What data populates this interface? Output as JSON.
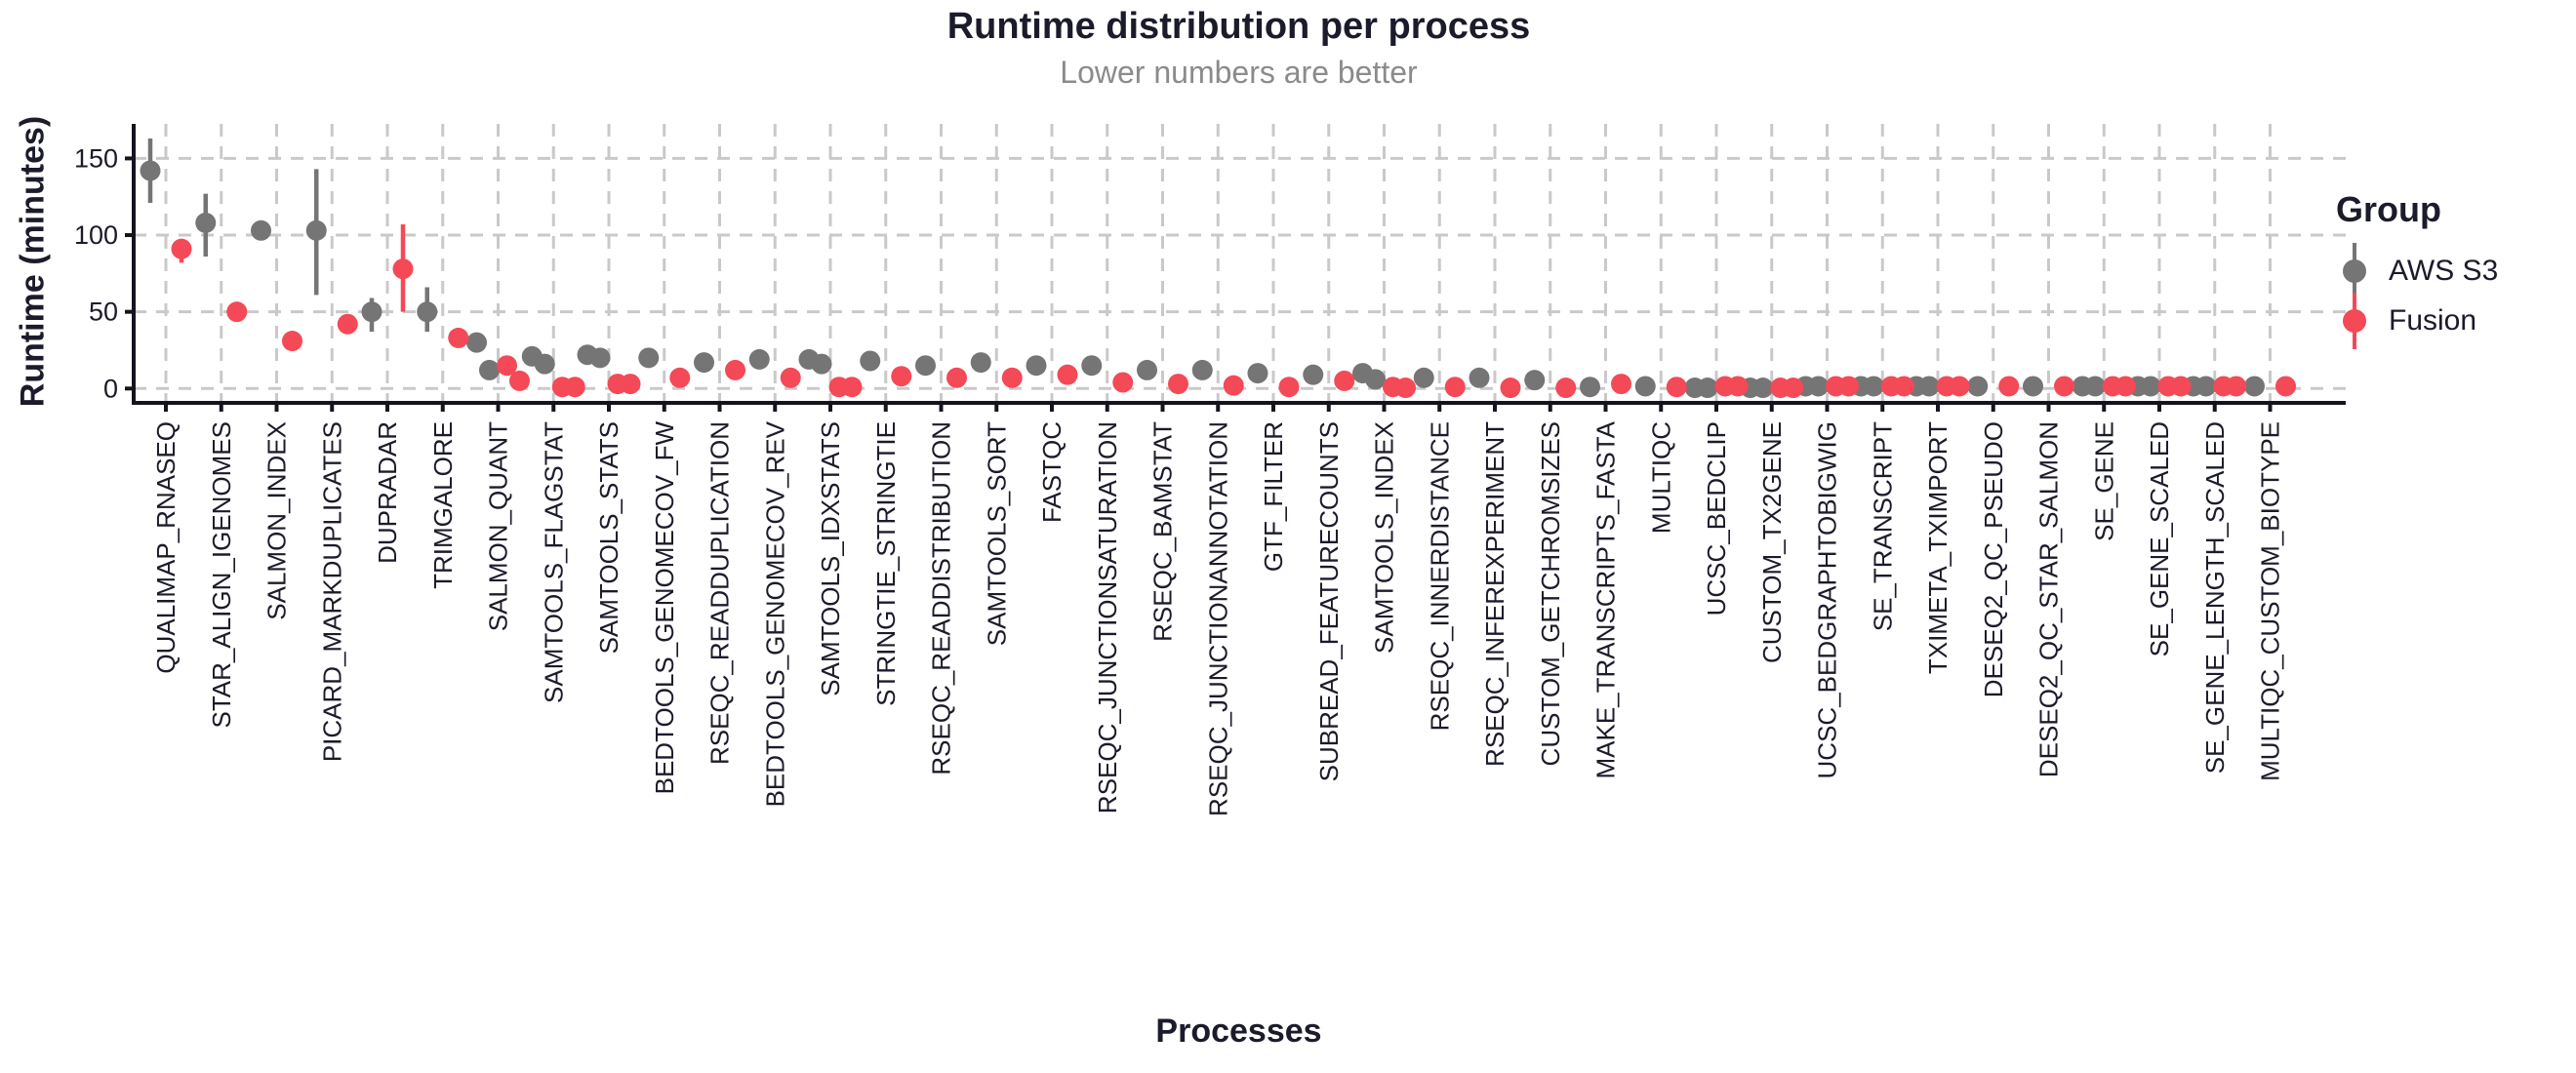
{
  "chart_data": {
    "type": "scatter",
    "subtype": "dodged-pointrange",
    "title": "Runtime distribution per process",
    "subtitle": "Lower numbers are better",
    "xlabel": "Processes",
    "ylabel": "Runtime (minutes)",
    "ylim": [
      0,
      172
    ],
    "yticks": [
      0,
      50,
      100,
      150
    ],
    "grid": "dashed, both axes",
    "legend_position": "right",
    "legend": {
      "title": "Group",
      "items": [
        {
          "label": "AWS S3",
          "color": "#757575"
        },
        {
          "label": "Fusion",
          "color": "#F44957"
        }
      ]
    },
    "style": {
      "text_color": "#1b1b2b",
      "subtitle_color": "#8b8b8b",
      "grid_color": "#c9c9c9",
      "axis_color": "#14141f",
      "background": "#ffffff"
    },
    "categories": [
      "QUALIMAP_RNASEQ",
      "STAR_ALIGN_IGENOMES",
      "SALMON_INDEX",
      "PICARD_MARKDUPLICATES",
      "DUPRADAR",
      "TRIMGALORE",
      "SALMON_QUANT",
      "SAMTOOLS_FLAGSTAT",
      "SAMTOOLS_STATS",
      "BEDTOOLS_GENOMECOV_FW",
      "RSEQC_READDUPLICATION",
      "BEDTOOLS_GENOMECOV_REV",
      "SAMTOOLS_IDXSTATS",
      "STRINGTIE_STRINGTIE",
      "RSEQC_READDISTRIBUTION",
      "SAMTOOLS_SORT",
      "FASTQC",
      "RSEQC_JUNCTIONSATURATION",
      "RSEQC_BAMSTAT",
      "RSEQC_JUNCTIONANNOTATION",
      "GTF_FILTER",
      "SUBREAD_FEATURECOUNTS",
      "SAMTOOLS_INDEX",
      "RSEQC_INNERDISTANCE",
      "RSEQC_INFEREXPERIMENT",
      "CUSTOM_GETCHROMSIZES",
      "MAKE_TRANSCRIPTS_FASTA",
      "MULTIQC",
      "UCSC_BEDCLIP",
      "CUSTOM_TX2GENE",
      "UCSC_BEDGRAPHTOBIGWIG",
      "SE_TRANSCRIPT",
      "TXIMETA_TXIMPORT",
      "DESEQ2_QC_PSEUDO",
      "DESEQ2_QC_STAR_SALMON",
      "SE_GENE",
      "SE_GENE_SCALED",
      "SE_GENE_LENGTH_SCALED",
      "MULTIQC_CUSTOM_BIOTYPE"
    ],
    "series": [
      {
        "name": "AWS S3",
        "color": "#757575",
        "points": [
          {
            "v": [
              142
            ],
            "ci": [
              121,
              163
            ]
          },
          {
            "v": [
              108
            ],
            "ci": [
              86,
              127
            ]
          },
          {
            "v": [
              103
            ]
          },
          {
            "v": [
              103
            ],
            "ci": [
              61,
              143
            ]
          },
          {
            "v": [
              50
            ],
            "ci": [
              37,
              59
            ]
          },
          {
            "v": [
              50
            ],
            "ci": [
              37,
              66
            ]
          },
          {
            "v": [
              30,
              12
            ]
          },
          {
            "v": [
              21,
              16
            ]
          },
          {
            "v": [
              22,
              20
            ],
            "ci": [
              16,
              26
            ]
          },
          {
            "v": [
              20
            ]
          },
          {
            "v": [
              17
            ]
          },
          {
            "v": [
              19
            ]
          },
          {
            "v": [
              19,
              16
            ]
          },
          {
            "v": [
              18
            ]
          },
          {
            "v": [
              15
            ]
          },
          {
            "v": [
              17
            ],
            "ci": [
              12,
              23
            ]
          },
          {
            "v": [
              15
            ]
          },
          {
            "v": [
              15
            ]
          },
          {
            "v": [
              12
            ]
          },
          {
            "v": [
              12
            ]
          },
          {
            "v": [
              10
            ]
          },
          {
            "v": [
              9
            ]
          },
          {
            "v": [
              10,
              6
            ]
          },
          {
            "v": [
              7
            ]
          },
          {
            "v": [
              7
            ]
          },
          {
            "v": [
              5.5
            ]
          },
          {
            "v": [
              1
            ]
          },
          {
            "v": [
              1.5
            ]
          },
          {
            "v": [
              0.5,
              0.5
            ]
          },
          {
            "v": [
              0.5,
              0.5
            ]
          },
          {
            "v": [
              1.5,
              1.5
            ]
          },
          {
            "v": [
              1.5,
              1.5
            ]
          },
          {
            "v": [
              1.5,
              1.5
            ],
            "ci": [
              0.5,
              4.5
            ]
          },
          {
            "v": [
              1.5
            ]
          },
          {
            "v": [
              1.5
            ]
          },
          {
            "v": [
              1.5,
              1.5
            ]
          },
          {
            "v": [
              1.5,
              1.5
            ]
          },
          {
            "v": [
              1.5,
              1.5
            ]
          },
          {
            "v": [
              1.5
            ]
          }
        ]
      },
      {
        "name": "Fusion",
        "color": "#F44957",
        "points": [
          {
            "v": [
              91
            ],
            "ci": [
              82,
              96
            ]
          },
          {
            "v": [
              50
            ]
          },
          {
            "v": [
              31
            ]
          },
          {
            "v": [
              42
            ]
          },
          {
            "v": [
              78
            ],
            "ci": [
              50,
              107
            ]
          },
          {
            "v": [
              33
            ]
          },
          {
            "v": [
              15,
              5
            ]
          },
          {
            "v": [
              1,
              1
            ]
          },
          {
            "v": [
              3,
              3
            ]
          },
          {
            "v": [
              7
            ]
          },
          {
            "v": [
              12
            ]
          },
          {
            "v": [
              7
            ]
          },
          {
            "v": [
              1,
              1
            ]
          },
          {
            "v": [
              8
            ]
          },
          {
            "v": [
              7
            ]
          },
          {
            "v": [
              7
            ]
          },
          {
            "v": [
              9
            ]
          },
          {
            "v": [
              4
            ]
          },
          {
            "v": [
              3
            ]
          },
          {
            "v": [
              2
            ]
          },
          {
            "v": [
              1
            ]
          },
          {
            "v": [
              5
            ]
          },
          {
            "v": [
              1,
              0.5
            ]
          },
          {
            "v": [
              1
            ]
          },
          {
            "v": [
              0.5
            ]
          },
          {
            "v": [
              0.5
            ]
          },
          {
            "v": [
              3
            ]
          },
          {
            "v": [
              1
            ]
          },
          {
            "v": [
              1.5,
              1.5
            ]
          },
          {
            "v": [
              0.5,
              0.5
            ]
          },
          {
            "v": [
              1.5,
              1.5
            ]
          },
          {
            "v": [
              1.5,
              1.5
            ]
          },
          {
            "v": [
              1.5,
              1.5
            ]
          },
          {
            "v": [
              1.5
            ]
          },
          {
            "v": [
              1.5
            ]
          },
          {
            "v": [
              1.5,
              1.5
            ]
          },
          {
            "v": [
              1.5,
              1.5
            ]
          },
          {
            "v": [
              1.5,
              1.5
            ]
          },
          {
            "v": [
              1.5
            ]
          }
        ]
      }
    ]
  }
}
